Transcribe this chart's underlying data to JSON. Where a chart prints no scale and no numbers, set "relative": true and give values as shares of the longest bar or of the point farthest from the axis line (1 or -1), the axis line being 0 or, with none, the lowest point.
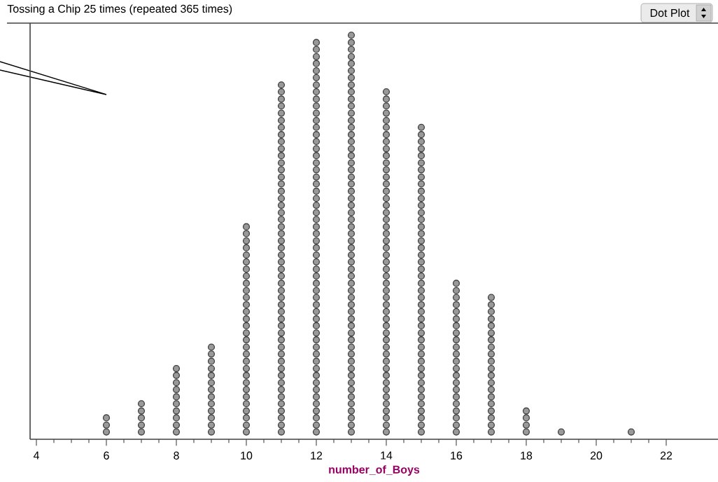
{
  "chart_data": {
    "type": "scatter",
    "title": "Tossing a Chip 25 times (repeated 365 times)",
    "xlabel": "number_of_Boys",
    "annotations": [
      "Dot Plot"
    ],
    "xlim": [
      3.82,
      23.48
    ],
    "xticks": [
      4,
      6,
      8,
      10,
      12,
      14,
      16,
      18,
      20,
      22
    ],
    "relative": true,
    "tick_labels": "x",
    "grid": false,
    "series": [
      {
        "color": "#999999",
        "x": [
          6,
          6,
          6
        ],
        "values": [
          0.018,
          0.035,
          0.053
        ]
      },
      {
        "color": "#999999",
        "x": [
          7,
          7,
          7,
          7,
          7
        ],
        "values": [
          0.018,
          0.035,
          0.053,
          0.07,
          0.088
        ]
      },
      {
        "color": "#999999",
        "x": [
          8,
          8,
          8,
          8,
          8,
          8,
          8,
          8,
          8,
          8
        ],
        "values": [
          0.018,
          0.035,
          0.053,
          0.07,
          0.088,
          0.105,
          0.123,
          0.14,
          0.158,
          0.175
        ]
      },
      {
        "color": "#999999",
        "x": [
          9,
          9,
          9,
          9,
          9,
          9,
          9,
          9,
          9,
          9,
          9,
          9,
          9
        ],
        "values": [
          0.018,
          0.035,
          0.053,
          0.07,
          0.088,
          0.105,
          0.123,
          0.14,
          0.158,
          0.175,
          0.193,
          0.211,
          0.228
        ]
      },
      {
        "color": "#999999",
        "x": [
          10,
          10,
          10,
          10,
          10,
          10,
          10,
          10,
          10,
          10,
          10,
          10,
          10,
          10,
          10,
          10,
          10,
          10,
          10,
          10,
          10,
          10,
          10,
          10,
          10,
          10,
          10,
          10,
          10,
          10
        ],
        "values": [
          0.018,
          0.035,
          0.053,
          0.07,
          0.088,
          0.105,
          0.123,
          0.14,
          0.158,
          0.175,
          0.193,
          0.211,
          0.228,
          0.246,
          0.263,
          0.281,
          0.298,
          0.316,
          0.333,
          0.351,
          0.368,
          0.386,
          0.404,
          0.421,
          0.439,
          0.456,
          0.474,
          0.491,
          0.509,
          0.526
        ]
      },
      {
        "color": "#999999",
        "x": [
          11,
          11,
          11,
          11,
          11,
          11,
          11,
          11,
          11,
          11,
          11,
          11,
          11,
          11,
          11,
          11,
          11,
          11,
          11,
          11,
          11,
          11,
          11,
          11,
          11,
          11,
          11,
          11,
          11,
          11,
          11,
          11,
          11,
          11,
          11,
          11,
          11,
          11,
          11,
          11,
          11,
          11,
          11,
          11,
          11,
          11,
          11,
          11,
          11,
          11
        ],
        "values": [
          0.018,
          0.035,
          0.053,
          0.07,
          0.088,
          0.105,
          0.123,
          0.14,
          0.158,
          0.175,
          0.193,
          0.211,
          0.228,
          0.246,
          0.263,
          0.281,
          0.298,
          0.316,
          0.333,
          0.351,
          0.368,
          0.386,
          0.404,
          0.421,
          0.439,
          0.456,
          0.474,
          0.491,
          0.509,
          0.526,
          0.544,
          0.561,
          0.579,
          0.596,
          0.614,
          0.632,
          0.649,
          0.667,
          0.684,
          0.702,
          0.719,
          0.737,
          0.754,
          0.772,
          0.789,
          0.807,
          0.825,
          0.842,
          0.86,
          0.877
        ]
      },
      {
        "color": "#999999",
        "x": [
          12,
          12,
          12,
          12,
          12,
          12,
          12,
          12,
          12,
          12,
          12,
          12,
          12,
          12,
          12,
          12,
          12,
          12,
          12,
          12,
          12,
          12,
          12,
          12,
          12,
          12,
          12,
          12,
          12,
          12,
          12,
          12,
          12,
          12,
          12,
          12,
          12,
          12,
          12,
          12,
          12,
          12,
          12,
          12,
          12,
          12,
          12,
          12,
          12,
          12,
          12,
          12,
          12,
          12,
          12,
          12
        ],
        "values": [
          0.018,
          0.035,
          0.053,
          0.07,
          0.088,
          0.105,
          0.123,
          0.14,
          0.158,
          0.175,
          0.193,
          0.211,
          0.228,
          0.246,
          0.263,
          0.281,
          0.298,
          0.316,
          0.333,
          0.351,
          0.368,
          0.386,
          0.404,
          0.421,
          0.439,
          0.456,
          0.474,
          0.491,
          0.509,
          0.526,
          0.544,
          0.561,
          0.579,
          0.596,
          0.614,
          0.632,
          0.649,
          0.667,
          0.684,
          0.702,
          0.719,
          0.737,
          0.754,
          0.772,
          0.789,
          0.807,
          0.825,
          0.842,
          0.86,
          0.877,
          0.895,
          0.912,
          0.93,
          0.947,
          0.965,
          0.982
        ]
      },
      {
        "color": "#999999",
        "x": [
          13,
          13,
          13,
          13,
          13,
          13,
          13,
          13,
          13,
          13,
          13,
          13,
          13,
          13,
          13,
          13,
          13,
          13,
          13,
          13,
          13,
          13,
          13,
          13,
          13,
          13,
          13,
          13,
          13,
          13,
          13,
          13,
          13,
          13,
          13,
          13,
          13,
          13,
          13,
          13,
          13,
          13,
          13,
          13,
          13,
          13,
          13,
          13,
          13,
          13,
          13,
          13,
          13,
          13,
          13,
          13,
          13
        ],
        "values": [
          0.018,
          0.035,
          0.053,
          0.07,
          0.088,
          0.105,
          0.123,
          0.14,
          0.158,
          0.175,
          0.193,
          0.211,
          0.228,
          0.246,
          0.263,
          0.281,
          0.298,
          0.316,
          0.333,
          0.351,
          0.368,
          0.386,
          0.404,
          0.421,
          0.439,
          0.456,
          0.474,
          0.491,
          0.509,
          0.526,
          0.544,
          0.561,
          0.579,
          0.596,
          0.614,
          0.632,
          0.649,
          0.667,
          0.684,
          0.702,
          0.719,
          0.737,
          0.754,
          0.772,
          0.789,
          0.807,
          0.825,
          0.842,
          0.86,
          0.877,
          0.895,
          0.912,
          0.93,
          0.947,
          0.965,
          0.982,
          1
        ]
      },
      {
        "color": "#999999",
        "x": [
          14,
          14,
          14,
          14,
          14,
          14,
          14,
          14,
          14,
          14,
          14,
          14,
          14,
          14,
          14,
          14,
          14,
          14,
          14,
          14,
          14,
          14,
          14,
          14,
          14,
          14,
          14,
          14,
          14,
          14,
          14,
          14,
          14,
          14,
          14,
          14,
          14,
          14,
          14,
          14,
          14,
          14,
          14,
          14,
          14,
          14,
          14,
          14,
          14
        ],
        "values": [
          0.018,
          0.035,
          0.053,
          0.07,
          0.088,
          0.105,
          0.123,
          0.14,
          0.158,
          0.175,
          0.193,
          0.211,
          0.228,
          0.246,
          0.263,
          0.281,
          0.298,
          0.316,
          0.333,
          0.351,
          0.368,
          0.386,
          0.404,
          0.421,
          0.439,
          0.456,
          0.474,
          0.491,
          0.509,
          0.526,
          0.544,
          0.561,
          0.579,
          0.596,
          0.614,
          0.632,
          0.649,
          0.667,
          0.684,
          0.702,
          0.719,
          0.737,
          0.754,
          0.772,
          0.789,
          0.807,
          0.825,
          0.842,
          0.86
        ]
      },
      {
        "color": "#999999",
        "x": [
          15,
          15,
          15,
          15,
          15,
          15,
          15,
          15,
          15,
          15,
          15,
          15,
          15,
          15,
          15,
          15,
          15,
          15,
          15,
          15,
          15,
          15,
          15,
          15,
          15,
          15,
          15,
          15,
          15,
          15,
          15,
          15,
          15,
          15,
          15,
          15,
          15,
          15,
          15,
          15,
          15,
          15,
          15,
          15
        ],
        "values": [
          0.018,
          0.035,
          0.053,
          0.07,
          0.088,
          0.105,
          0.123,
          0.14,
          0.158,
          0.175,
          0.193,
          0.211,
          0.228,
          0.246,
          0.263,
          0.281,
          0.298,
          0.316,
          0.333,
          0.351,
          0.368,
          0.386,
          0.404,
          0.421,
          0.439,
          0.456,
          0.474,
          0.491,
          0.509,
          0.526,
          0.544,
          0.561,
          0.579,
          0.596,
          0.614,
          0.632,
          0.649,
          0.667,
          0.684,
          0.702,
          0.719,
          0.737,
          0.754,
          0.772
        ]
      },
      {
        "color": "#999999",
        "x": [
          16,
          16,
          16,
          16,
          16,
          16,
          16,
          16,
          16,
          16,
          16,
          16,
          16,
          16,
          16,
          16,
          16,
          16,
          16,
          16,
          16,
          16
        ],
        "values": [
          0.018,
          0.035,
          0.053,
          0.07,
          0.088,
          0.105,
          0.123,
          0.14,
          0.158,
          0.175,
          0.193,
          0.211,
          0.228,
          0.246,
          0.263,
          0.281,
          0.298,
          0.316,
          0.333,
          0.351,
          0.368,
          0.386
        ]
      },
      {
        "color": "#999999",
        "x": [
          17,
          17,
          17,
          17,
          17,
          17,
          17,
          17,
          17,
          17,
          17,
          17,
          17,
          17,
          17,
          17,
          17,
          17,
          17,
          17
        ],
        "values": [
          0.018,
          0.035,
          0.053,
          0.07,
          0.088,
          0.105,
          0.123,
          0.14,
          0.158,
          0.175,
          0.193,
          0.211,
          0.228,
          0.246,
          0.263,
          0.281,
          0.298,
          0.316,
          0.333,
          0.351
        ]
      },
      {
        "color": "#999999",
        "x": [
          18,
          18,
          18,
          18
        ],
        "values": [
          0.018,
          0.035,
          0.053,
          0.07
        ]
      },
      {
        "color": "#999999",
        "x": [
          19
        ],
        "values": [
          0.018
        ]
      },
      {
        "color": "#999999",
        "x": [
          21
        ],
        "values": [
          0.018
        ]
      }
    ]
  }
}
